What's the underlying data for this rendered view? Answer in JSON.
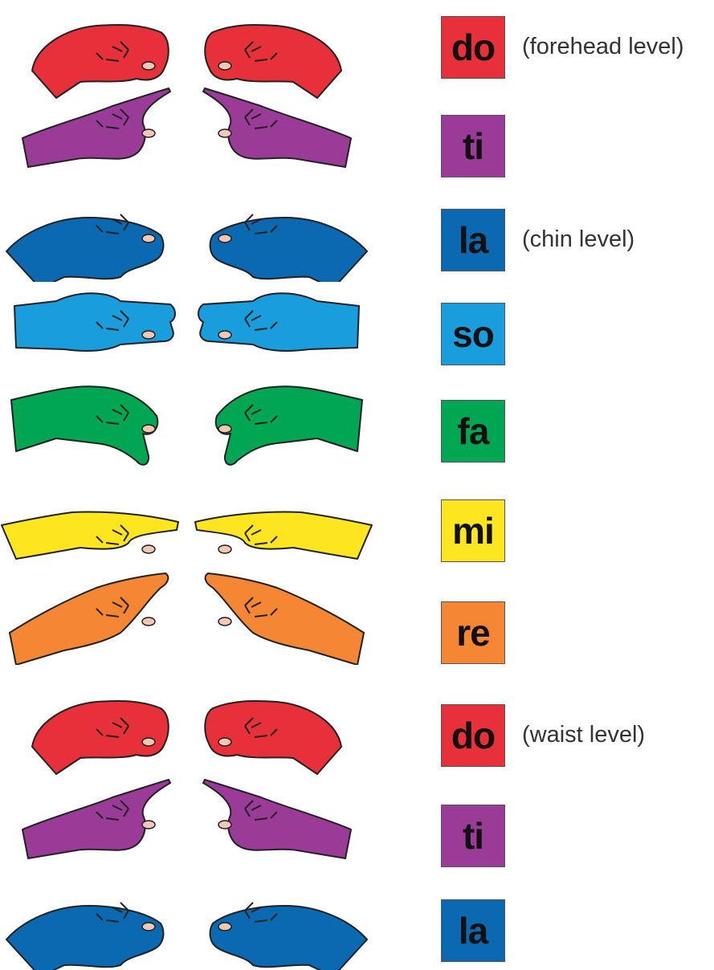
{
  "rows": [
    {
      "syllable": "do",
      "note": "(forehead level)",
      "color": "#e8303a",
      "hand": "fist-icon"
    },
    {
      "syllable": "ti",
      "note": "",
      "color": "#9b3b98",
      "hand": "pointing-up-icon"
    },
    {
      "syllable": "la",
      "note": "(chin level)",
      "color": "#0a69b1",
      "hand": "drooping-hand-icon"
    },
    {
      "syllable": "so",
      "note": "",
      "color": "#1a9ddc",
      "hand": "flat-hand-icon"
    },
    {
      "syllable": "fa",
      "note": "",
      "color": "#00a651",
      "hand": "thumb-down-icon"
    },
    {
      "syllable": "mi",
      "note": "",
      "color": "#fde51f",
      "hand": "flat-palm-down-icon"
    },
    {
      "syllable": "re",
      "note": "",
      "color": "#f58634",
      "hand": "angled-up-hand-icon"
    },
    {
      "syllable": "do",
      "note": "(waist level)",
      "color": "#e8303a",
      "hand": "fist-icon"
    },
    {
      "syllable": "ti",
      "note": "",
      "color": "#9b3b98",
      "hand": "pointing-up-icon"
    },
    {
      "syllable": "la",
      "note": "",
      "color": "#0a69b1",
      "hand": "drooping-hand-icon"
    }
  ]
}
